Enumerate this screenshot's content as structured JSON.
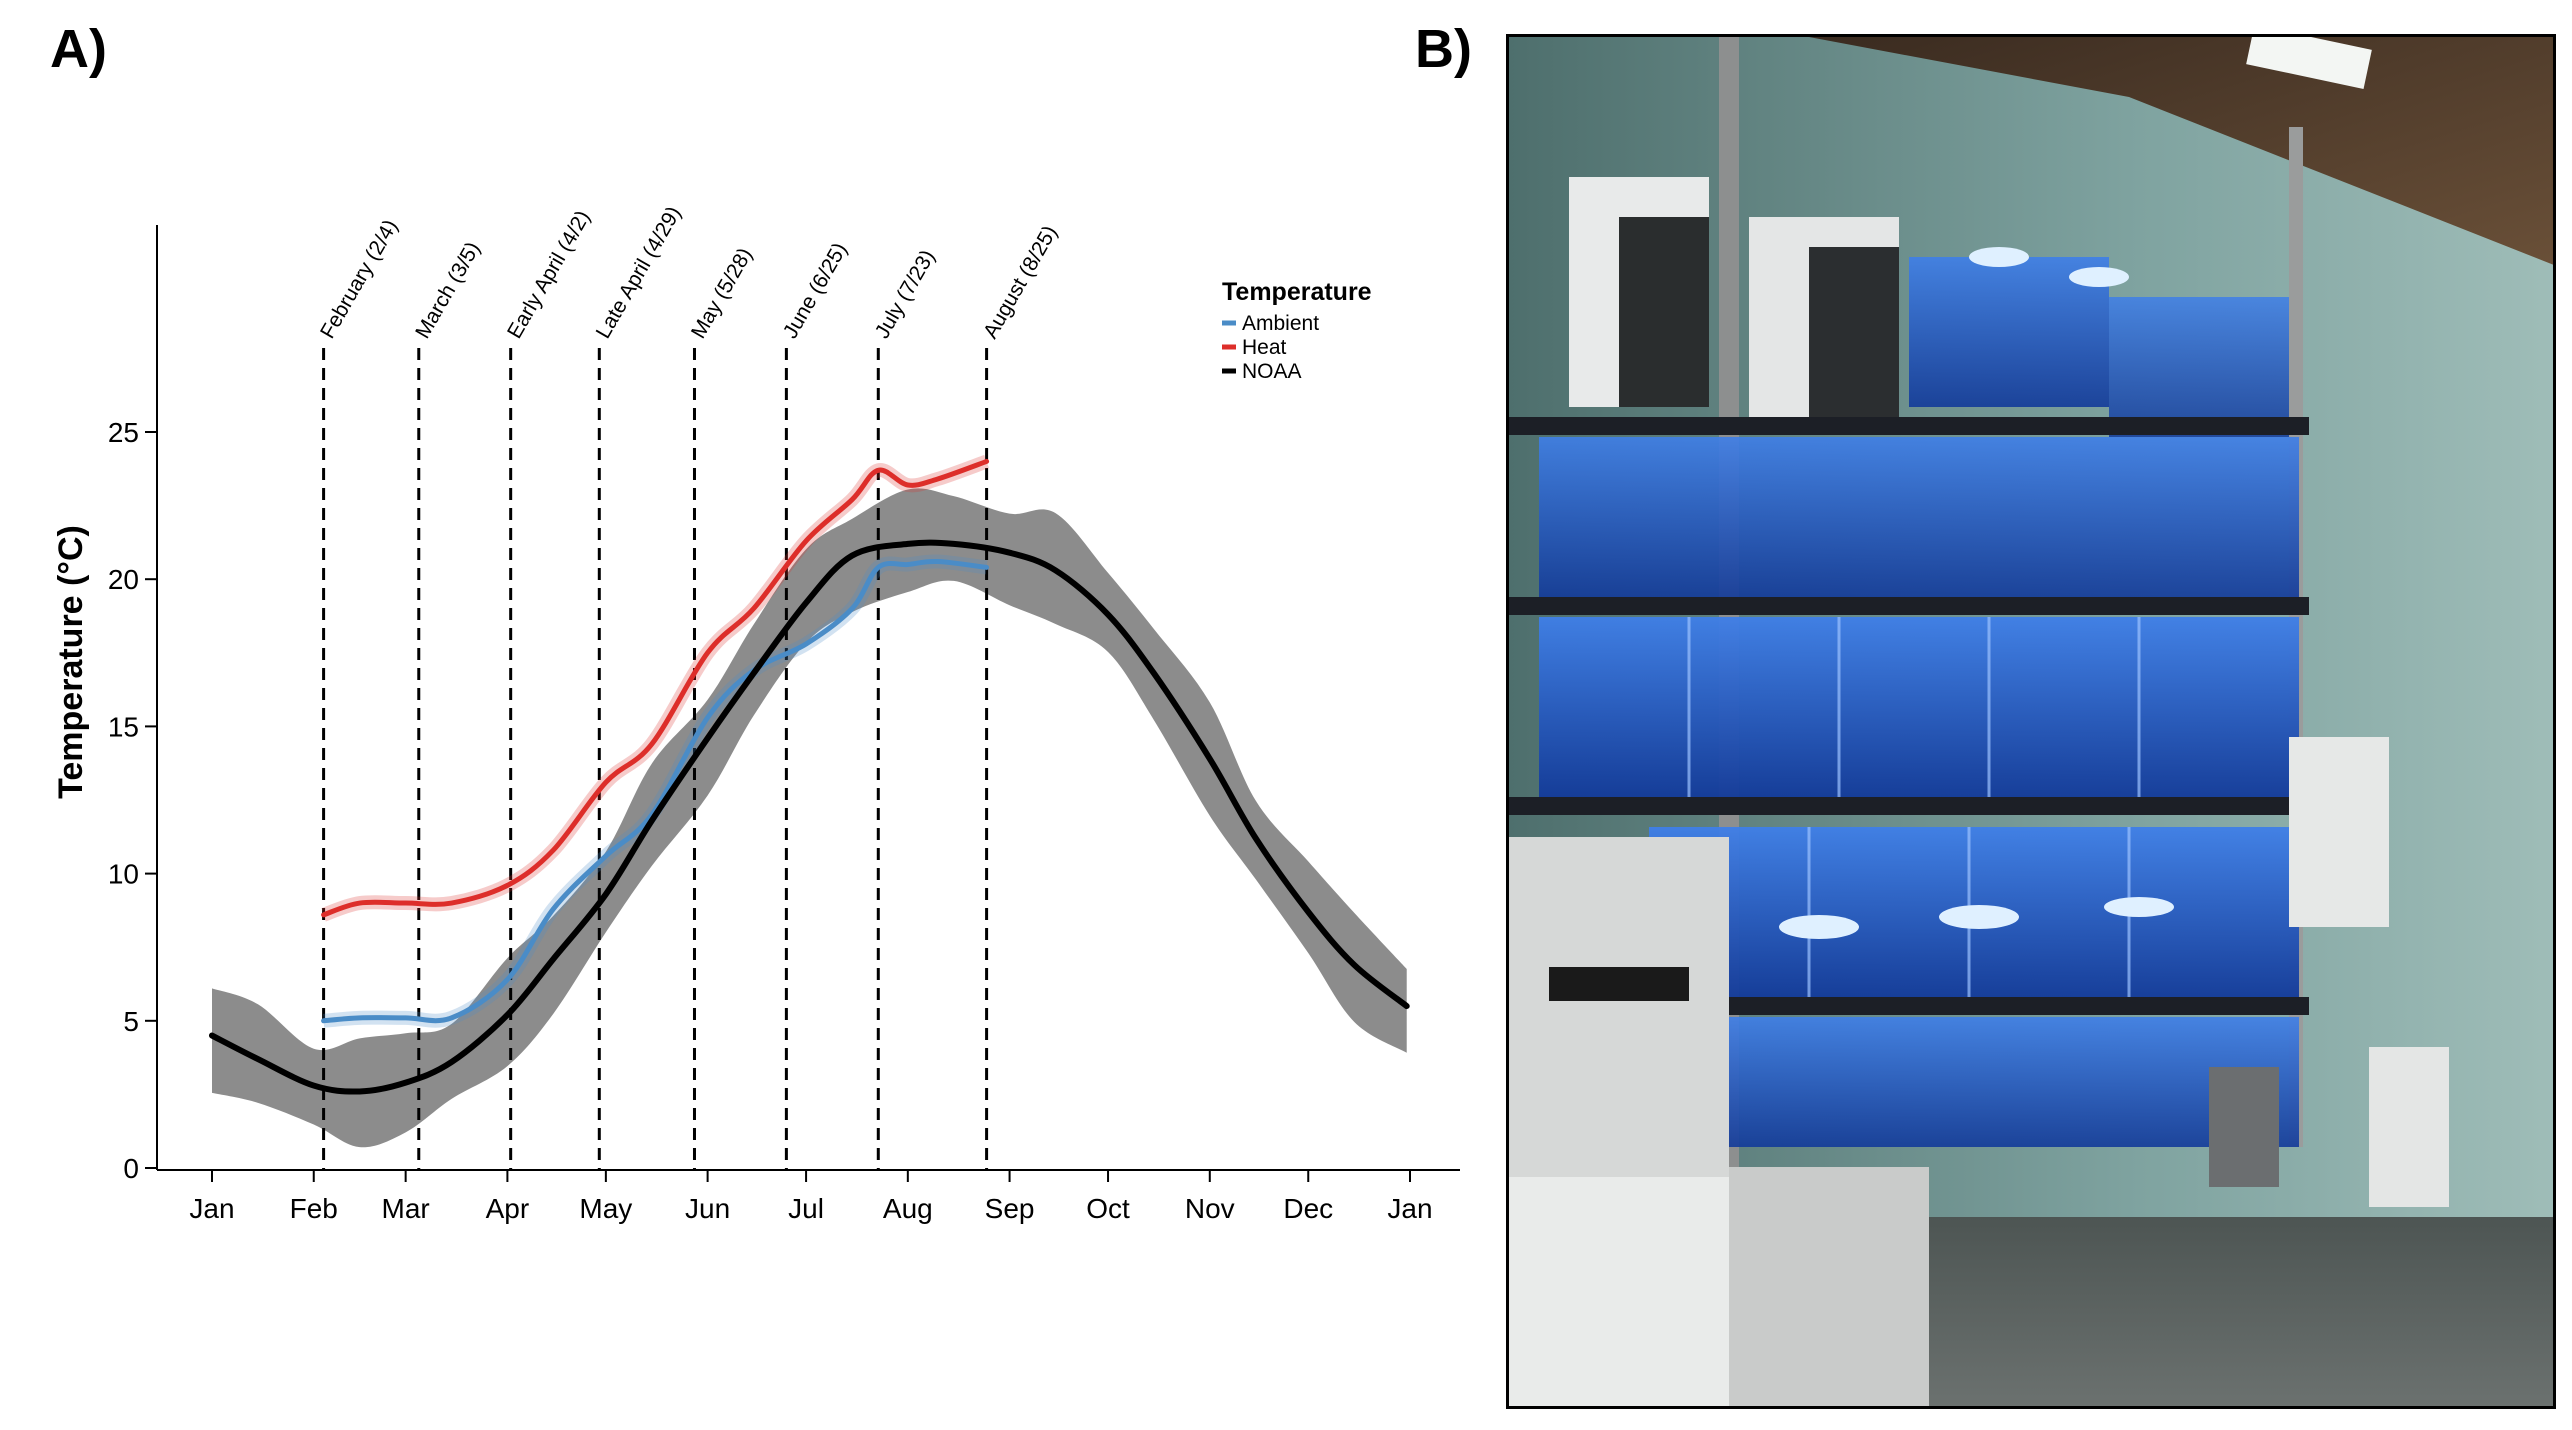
{
  "panels": {
    "a_label": "A)",
    "b_label": "B)"
  },
  "colors": {
    "ambient": "#4a8cc7",
    "heat": "#dd2e2a",
    "noaa": "#000000",
    "noaa_ribbon": "#8c8c8c"
  },
  "photo": {
    "description_icon": "aquarium-rack-photo"
  },
  "chart_data": {
    "type": "line",
    "title": "",
    "xlabel": "",
    "ylabel": "Temperature (°C)",
    "xlim": [
      "Jan 1",
      "Jan 1 (next year)"
    ],
    "ylim": [
      0,
      25
    ],
    "y_ticks": [
      0,
      5,
      10,
      15,
      20,
      25
    ],
    "x_ticks": [
      "Jan",
      "Feb",
      "Mar",
      "Apr",
      "May",
      "Jun",
      "Jul",
      "Aug",
      "Sep",
      "Oct",
      "Nov",
      "Dec",
      "Jan"
    ],
    "grid": false,
    "legend": {
      "title": "Temperature",
      "placement": "top-right",
      "entries": [
        "Ambient",
        "Heat",
        "NOAA"
      ]
    },
    "annotations": [
      {
        "label": "February (2/4)",
        "date": "2/4"
      },
      {
        "label": "March (3/5)",
        "date": "3/5"
      },
      {
        "label": "Early April (4/2)",
        "date": "4/2"
      },
      {
        "label": "Late April (4/29)",
        "date": "4/29"
      },
      {
        "label": "May (5/28)",
        "date": "5/28"
      },
      {
        "label": "June (6/25)",
        "date": "6/25"
      },
      {
        "label": "July (7/23)",
        "date": "7/23"
      },
      {
        "label": "August (8/25)",
        "date": "8/25"
      }
    ],
    "series": [
      {
        "name": "NOAA",
        "x": [
          "1/1",
          "1/15",
          "2/1",
          "2/15",
          "3/1",
          "3/15",
          "4/1",
          "4/15",
          "5/1",
          "5/15",
          "6/1",
          "6/15",
          "7/1",
          "7/15",
          "8/1",
          "8/15",
          "9/1",
          "9/15",
          "10/1",
          "10/15",
          "11/1",
          "11/15",
          "12/1",
          "12/15",
          "12/31"
        ],
        "y": [
          4.5,
          3.7,
          2.8,
          2.6,
          2.9,
          3.6,
          5.2,
          7.1,
          9.3,
          11.8,
          14.6,
          16.8,
          19.2,
          20.8,
          21.2,
          21.2,
          20.9,
          20.3,
          18.8,
          16.8,
          13.9,
          11.2,
          8.7,
          6.9,
          5.5
        ],
        "ribbon_halfwidth": 1.6
      },
      {
        "name": "Heat",
        "x": [
          "2/4",
          "2/15",
          "3/1",
          "3/15",
          "4/1",
          "4/15",
          "5/1",
          "5/15",
          "6/1",
          "6/15",
          "7/1",
          "7/15",
          "7/23",
          "8/1",
          "8/10",
          "8/25"
        ],
        "y": [
          8.6,
          9.0,
          9.0,
          9.0,
          9.6,
          10.8,
          13.1,
          14.4,
          17.5,
          19.0,
          21.3,
          22.7,
          23.7,
          23.2,
          23.4,
          24.0
        ]
      },
      {
        "name": "Ambient",
        "x": [
          "2/4",
          "2/15",
          "3/1",
          "3/15",
          "4/1",
          "4/15",
          "5/1",
          "5/15",
          "6/1",
          "6/15",
          "7/1",
          "7/15",
          "7/23",
          "8/1",
          "8/10",
          "8/25"
        ],
        "y": [
          5.0,
          5.1,
          5.1,
          5.1,
          6.4,
          8.8,
          10.6,
          12.0,
          15.3,
          16.9,
          17.8,
          19.0,
          20.4,
          20.5,
          20.6,
          20.4
        ]
      }
    ]
  }
}
